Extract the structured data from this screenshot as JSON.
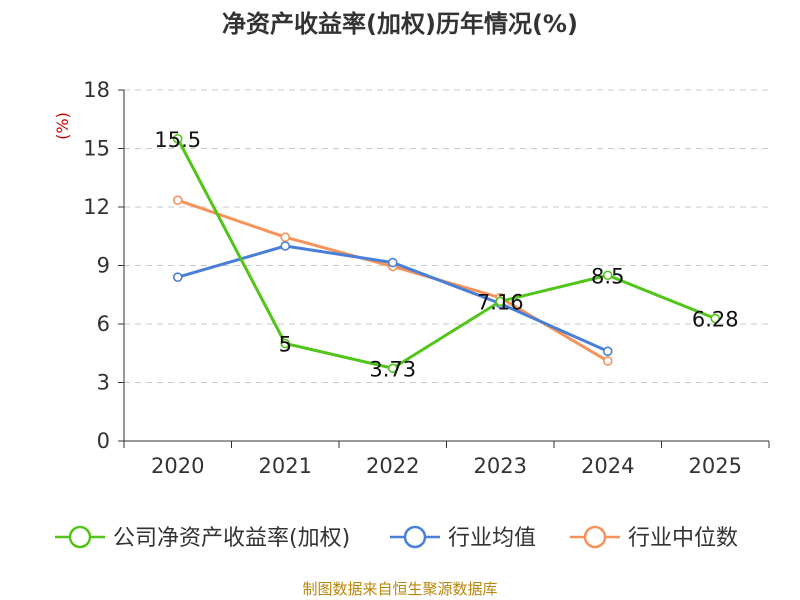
{
  "chart_data": {
    "type": "line",
    "title": "净资产收益率(加权)历年情况(%)",
    "ylabel": "(%)",
    "xlabel": "",
    "categories": [
      "2020",
      "2021",
      "2022",
      "2023",
      "2024",
      "2025"
    ],
    "ylim": [
      0,
      18
    ],
    "yticks": [
      0,
      3,
      6,
      9,
      12,
      15,
      18
    ],
    "grid": true,
    "legend_position": "bottom",
    "series": [
      {
        "name": "公司净资产收益率(加权)",
        "color": "#52c41a",
        "values": [
          15.5,
          5,
          3.73,
          7.16,
          8.5,
          6.28
        ],
        "labels": [
          "15.5",
          "5",
          "3.73",
          "7.16",
          "8.5",
          "6.28"
        ]
      },
      {
        "name": "行业均值",
        "color": "#4a7fd8",
        "values": [
          8.4,
          10.0,
          9.15,
          7.05,
          4.6,
          null
        ]
      },
      {
        "name": "行业中位数",
        "color": "#f5935a",
        "values": [
          12.35,
          10.45,
          8.95,
          7.35,
          4.1,
          null
        ]
      }
    ],
    "source": "制图数据来自恒生聚源数据库"
  }
}
